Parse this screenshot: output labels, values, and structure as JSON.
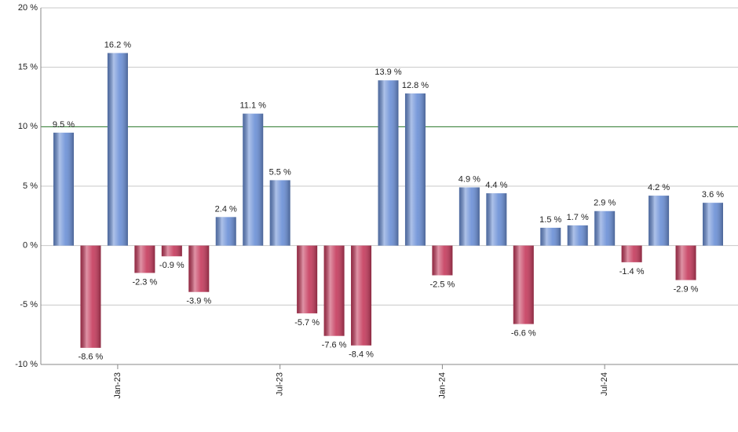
{
  "chart_data": {
    "type": "bar",
    "categories": [
      null,
      null,
      "Jan-23",
      null,
      null,
      null,
      null,
      null,
      "Jul-23",
      null,
      null,
      null,
      null,
      null,
      "Jan-24",
      null,
      null,
      null,
      null,
      null,
      "Jul-24",
      null,
      null,
      null,
      null
    ],
    "values": [
      9.5,
      -8.6,
      16.2,
      -2.3,
      -0.9,
      -3.9,
      2.4,
      11.1,
      5.5,
      -5.7,
      -7.6,
      -8.4,
      13.9,
      12.8,
      -2.5,
      4.9,
      4.4,
      -6.6,
      1.5,
      1.7,
      2.9,
      -1.4,
      4.2,
      -2.9,
      3.6
    ],
    "value_labels": [
      "9.5 %",
      "-8.6 %",
      "16.2 %",
      "-2.3 %",
      "-0.9 %",
      "-3.9 %",
      "2.4 %",
      "11.1 %",
      "5.5 %",
      "-5.7 %",
      "-7.6 %",
      "-8.4 %",
      "13.9 %",
      "12.8 %",
      "-2.5 %",
      "4.9 %",
      "4.4 %",
      "-6.6 %",
      "1.5 %",
      "1.7 %",
      "2.9 %",
      "-1.4 %",
      "4.2 %",
      "-2.9 %",
      "3.6 %"
    ],
    "color_positive": "#6a8fd6",
    "color_negative": "#c53a5c",
    "ylim": [
      -10,
      20
    ],
    "yticks": [
      {
        "value": -10,
        "label": "-10 %"
      },
      {
        "value": -5,
        "label": "-5 %"
      },
      {
        "value": 0,
        "label": "0 %"
      },
      {
        "value": 5,
        "label": "5 %"
      },
      {
        "value": 10,
        "label": "10 %"
      },
      {
        "value": 15,
        "label": "15 %"
      },
      {
        "value": 20,
        "label": "20 %"
      }
    ],
    "grid": true,
    "reference_line": 10,
    "reference_color": "#2e7d2e"
  }
}
